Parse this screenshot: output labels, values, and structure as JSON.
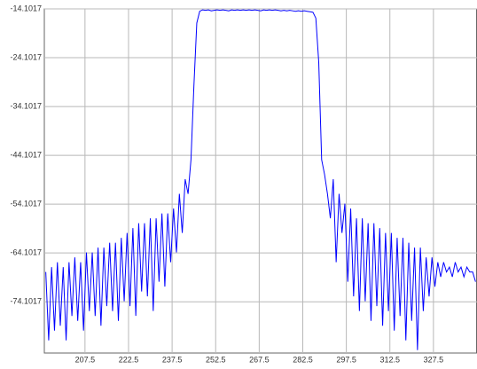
{
  "chart_data": {
    "type": "line",
    "color": "#0000ff",
    "grid": true,
    "xlim": [
      193.5,
      342.5
    ],
    "ylim": [
      -84.6,
      -14.1017
    ],
    "xticks": [
      207.5,
      222.5,
      237.5,
      252.5,
      267.5,
      282.5,
      297.5,
      312.5,
      327.5
    ],
    "yticks": [
      -14.1017,
      -24.1017,
      -34.1017,
      -44.1017,
      -54.1017,
      -64.1017,
      -74.1017
    ],
    "x": [
      194,
      195,
      196,
      197,
      198,
      199,
      200,
      201,
      202,
      203,
      204,
      205,
      206,
      207,
      208,
      209,
      210,
      211,
      212,
      213,
      214,
      215,
      216,
      217,
      218,
      219,
      220,
      221,
      222,
      223,
      224,
      225,
      226,
      227,
      228,
      229,
      230,
      231,
      232,
      233,
      234,
      235,
      236,
      237,
      238,
      239,
      240,
      241,
      242,
      243,
      244,
      245,
      246,
      247,
      248,
      249,
      250,
      251,
      252,
      253,
      254,
      255,
      256,
      257,
      258,
      259,
      260,
      261,
      262,
      263,
      264,
      265,
      266,
      267,
      268,
      269,
      270,
      271,
      272,
      273,
      274,
      275,
      276,
      277,
      278,
      279,
      280,
      281,
      282,
      283,
      284,
      285,
      286,
      287,
      288,
      289,
      290,
      291,
      292,
      293,
      294,
      295,
      296,
      297,
      298,
      299,
      300,
      301,
      302,
      303,
      304,
      305,
      306,
      307,
      308,
      309,
      310,
      311,
      312,
      313,
      314,
      315,
      316,
      317,
      318,
      319,
      320,
      321,
      322,
      323,
      324,
      325,
      326,
      327,
      328,
      329,
      330,
      331,
      332,
      333,
      334,
      335,
      336,
      337,
      338,
      339,
      340,
      341,
      342
    ],
    "values": [
      -68,
      -82,
      -67,
      -80,
      -66,
      -79,
      -67,
      -82,
      -66,
      -77,
      -65,
      -78,
      -66,
      -80,
      -64,
      -76,
      -64,
      -77,
      -63,
      -79,
      -63,
      -75,
      -62,
      -76,
      -62,
      -78,
      -61,
      -74,
      -60,
      -75,
      -59,
      -77,
      -58,
      -72,
      -58,
      -73,
      -57,
      -76,
      -57,
      -70,
      -56,
      -71,
      -56,
      -66,
      -55,
      -64,
      -52,
      -60,
      -49,
      -52,
      -45,
      -30,
      -17,
      -14.6,
      -14.3,
      -14.4,
      -14.3,
      -14.5,
      -14.4,
      -14.3,
      -14.4,
      -14.3,
      -14.4,
      -14.5,
      -14.3,
      -14.4,
      -14.3,
      -14.4,
      -14.3,
      -14.4,
      -14.3,
      -14.4,
      -14.3,
      -14.4,
      -14.5,
      -14.3,
      -14.4,
      -14.3,
      -14.4,
      -14.3,
      -14.4,
      -14.5,
      -14.4,
      -14.5,
      -14.4,
      -14.5,
      -14.6,
      -14.5,
      -14.6,
      -14.5,
      -14.6,
      -14.7,
      -14.8,
      -16,
      -25,
      -45,
      -48,
      -52,
      -57,
      -49,
      -66,
      -52,
      -60,
      -54,
      -70,
      -55,
      -73,
      -57,
      -76,
      -57,
      -74,
      -58,
      -78,
      -58,
      -75,
      -59,
      -79,
      -60,
      -76,
      -60,
      -80,
      -61,
      -77,
      -61,
      -82,
      -62,
      -78,
      -63,
      -84,
      -63,
      -76,
      -65,
      -73,
      -65,
      -71,
      -66,
      -69,
      -66,
      -68,
      -67,
      -69,
      -66,
      -68,
      -67,
      -69,
      -67,
      -68,
      -68,
      -70
    ]
  }
}
